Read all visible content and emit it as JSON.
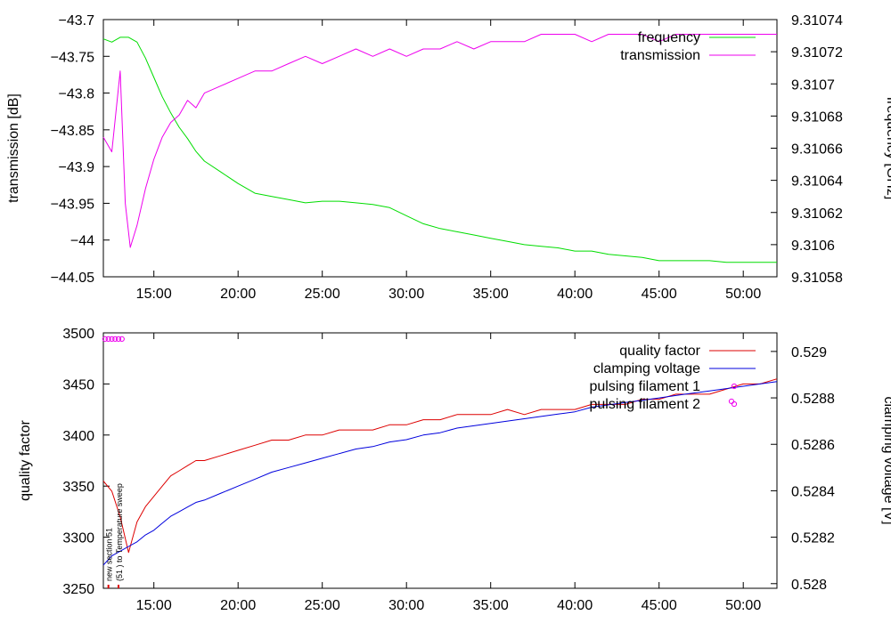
{
  "chart_data": [
    {
      "type": "line",
      "x_tick_labels": [
        "15:00",
        "20:00",
        "25:00",
        "30:00",
        "35:00",
        "40:00",
        "45:00",
        "50:00"
      ],
      "x_tick_minutes": [
        15,
        20,
        25,
        30,
        35,
        40,
        45,
        50
      ],
      "xlim_minutes": [
        12,
        52
      ],
      "ylabel": "transmission [dB]",
      "ylim": [
        -44.05,
        -43.7
      ],
      "y_ticks": [
        -43.7,
        -43.75,
        -43.8,
        -43.85,
        -43.9,
        -43.95,
        -44,
        -44.05
      ],
      "y_tick_labels": [
        "-43.7",
        "-43.75",
        "-43.8",
        "-43.85",
        "-43.9",
        "-43.95",
        "-44",
        "-44.05"
      ],
      "y2label": "frequency [GHz]",
      "y2lim": [
        9.31058,
        9.31074
      ],
      "y2_ticks": [
        9.31058,
        9.3106,
        9.31062,
        9.31064,
        9.31066,
        9.31068,
        9.3107,
        9.31072,
        9.31074
      ],
      "y2_tick_labels": [
        "9.31058",
        "9.3106",
        "9.31062",
        "9.31064",
        "9.31066",
        "9.31068",
        "9.3107",
        "9.31072",
        "9.31074"
      ],
      "legend_position": "top-right",
      "series": [
        {
          "name": "frequency",
          "axis": "y2",
          "color": "#00dd00",
          "x": [
            12,
            12.5,
            13,
            13.5,
            14,
            14.5,
            15,
            15.5,
            16,
            16.5,
            17,
            17.5,
            18,
            19,
            20,
            21,
            22,
            23,
            24,
            25,
            26,
            27,
            28,
            29,
            30,
            31,
            32,
            33,
            34,
            35,
            36,
            37,
            38,
            39,
            40,
            41,
            42,
            43,
            44,
            45,
            46,
            47,
            48,
            49,
            50,
            51,
            52
          ],
          "y": [
            9.310728,
            9.310726,
            9.310729,
            9.310729,
            9.310726,
            9.310716,
            9.310704,
            9.310692,
            9.310682,
            9.310673,
            9.310666,
            9.310658,
            9.310652,
            9.310645,
            9.310638,
            9.310632,
            9.31063,
            9.310628,
            9.310626,
            9.310627,
            9.310627,
            9.310626,
            9.310625,
            9.310623,
            9.310618,
            9.310613,
            9.31061,
            9.310608,
            9.310606,
            9.310604,
            9.310602,
            9.3106,
            9.310599,
            9.310598,
            9.310596,
            9.310596,
            9.310594,
            9.310593,
            9.310592,
            9.31059,
            9.31059,
            9.31059,
            9.31059,
            9.310589,
            9.310589,
            9.310589,
            9.310589
          ]
        },
        {
          "name": "transmission",
          "axis": "y",
          "color": "#ee00ee",
          "x": [
            12,
            12.5,
            13,
            13.3,
            13.6,
            14,
            14.5,
            15,
            15.5,
            16,
            16.5,
            17,
            17.5,
            18,
            19,
            20,
            21,
            22,
            23,
            24,
            25,
            26,
            27,
            28,
            29,
            30,
            31,
            32,
            33,
            34,
            35,
            36,
            37,
            38,
            39,
            40,
            41,
            42,
            43,
            44,
            45,
            46,
            47,
            48,
            49,
            50,
            51,
            52
          ],
          "y": [
            -43.86,
            -43.88,
            -43.77,
            -43.95,
            -44.01,
            -43.98,
            -43.93,
            -43.89,
            -43.86,
            -43.84,
            -43.83,
            -43.81,
            -43.82,
            -43.8,
            -43.79,
            -43.78,
            -43.77,
            -43.77,
            -43.76,
            -43.75,
            -43.76,
            -43.75,
            -43.74,
            -43.75,
            -43.74,
            -43.75,
            -43.74,
            -43.74,
            -43.73,
            -43.74,
            -43.73,
            -43.73,
            -43.73,
            -43.72,
            -43.72,
            -43.72,
            -43.73,
            -43.72,
            -43.72,
            -43.72,
            -43.73,
            -43.72,
            -43.72,
            -43.72,
            -43.72,
            -43.72,
            -43.72,
            -43.72
          ]
        }
      ]
    },
    {
      "type": "line",
      "x_tick_labels": [
        "15:00",
        "20:00",
        "25:00",
        "30:00",
        "35:00",
        "40:00",
        "45:00",
        "50:00"
      ],
      "x_tick_minutes": [
        15,
        20,
        25,
        30,
        35,
        40,
        45,
        50
      ],
      "xlim_minutes": [
        12,
        52
      ],
      "ylabel": "quality factor",
      "ylim": [
        3250,
        3500
      ],
      "y_ticks": [
        3250,
        3300,
        3350,
        3400,
        3450,
        3500
      ],
      "y_tick_labels": [
        "3250",
        "3300",
        "3350",
        "3400",
        "3450",
        "3500"
      ],
      "y2label": "clamping voltage [V]",
      "y2lim": [
        0.52798,
        0.52908
      ],
      "y2_ticks": [
        0.528,
        0.5282,
        0.5284,
        0.5286,
        0.5288,
        0.529
      ],
      "y2_tick_labels": [
        "0.528",
        "0.5282",
        "0.5284",
        "0.5286",
        "0.5288",
        "0.529"
      ],
      "legend_position": "top-right",
      "annotations": [
        {
          "text": "new section 51",
          "x": 12.3
        },
        {
          "text": "(51 ) to Temperature sweep",
          "x": 12.9
        }
      ],
      "series": [
        {
          "name": "quality factor",
          "axis": "y",
          "color": "#dd0000",
          "x": [
            12,
            12.5,
            13,
            13.5,
            14,
            14.5,
            15,
            15.5,
            16,
            16.5,
            17,
            17.5,
            18,
            19,
            20,
            21,
            22,
            23,
            24,
            25,
            26,
            27,
            28,
            29,
            30,
            31,
            32,
            33,
            34,
            35,
            36,
            37,
            38,
            39,
            40,
            41,
            42,
            43,
            44,
            45,
            46,
            47,
            48,
            49,
            50,
            51,
            52
          ],
          "y": [
            3355,
            3345,
            3320,
            3285,
            3315,
            3330,
            3340,
            3350,
            3360,
            3365,
            3370,
            3375,
            3375,
            3380,
            3385,
            3390,
            3395,
            3395,
            3400,
            3400,
            3405,
            3405,
            3405,
            3410,
            3410,
            3415,
            3415,
            3420,
            3420,
            3420,
            3425,
            3420,
            3425,
            3425,
            3425,
            3430,
            3430,
            3430,
            3435,
            3435,
            3440,
            3440,
            3440,
            3445,
            3450,
            3450,
            3455
          ]
        },
        {
          "name": "clamping voltage",
          "axis": "y2",
          "color": "#0000dd",
          "x": [
            12,
            12.5,
            13,
            13.5,
            14,
            14.5,
            15,
            15.5,
            16,
            16.5,
            17,
            17.5,
            18,
            19,
            20,
            21,
            22,
            23,
            24,
            25,
            26,
            27,
            28,
            29,
            30,
            31,
            32,
            33,
            34,
            35,
            36,
            37,
            38,
            39,
            40,
            41,
            42,
            43,
            44,
            45,
            46,
            47,
            48,
            49,
            50,
            51,
            52
          ],
          "y": [
            0.52808,
            0.52812,
            0.52814,
            0.52816,
            0.52818,
            0.52821,
            0.52823,
            0.52826,
            0.52829,
            0.52831,
            0.52833,
            0.52835,
            0.52836,
            0.52839,
            0.52842,
            0.52845,
            0.52848,
            0.5285,
            0.52852,
            0.52854,
            0.52856,
            0.52858,
            0.52859,
            0.52861,
            0.52862,
            0.52864,
            0.52865,
            0.52867,
            0.52868,
            0.52869,
            0.5287,
            0.52871,
            0.52872,
            0.52873,
            0.52874,
            0.52876,
            0.52877,
            0.52878,
            0.52879,
            0.5288,
            0.52881,
            0.52882,
            0.52883,
            0.52884,
            0.52885,
            0.52886,
            0.52887
          ]
        },
        {
          "name": "pulsing filament 1",
          "axis": "y",
          "color": "#ee00ee",
          "marker": "circle",
          "x": [
            12.1,
            12.3,
            12.5,
            12.7,
            12.9,
            13.1
          ],
          "y": [
            3494,
            3494,
            3494,
            3494,
            3494,
            3494
          ]
        },
        {
          "name": "pulsing filament 2",
          "axis": "y",
          "color": "#ee00ee",
          "marker": "circle",
          "x": [
            49.3
          ],
          "y": [
            3433
          ]
        }
      ]
    }
  ]
}
